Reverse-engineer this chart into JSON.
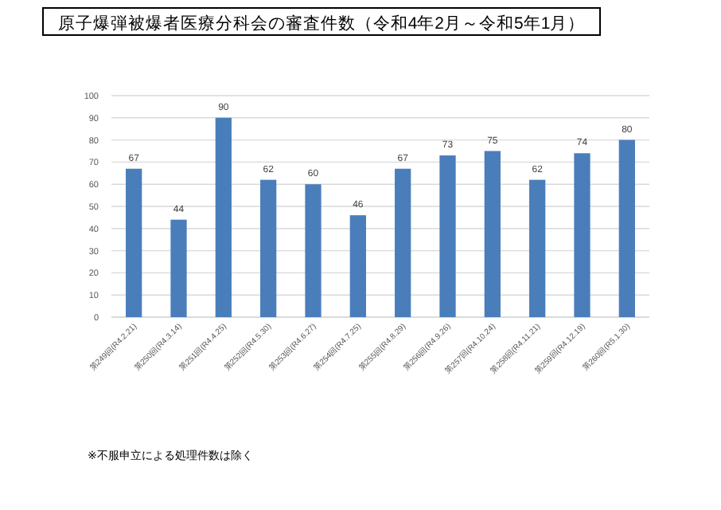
{
  "chart_data": {
    "type": "bar",
    "title": "原子爆弾被爆者医療分科会の審査件数（令和4年2月～令和5年1月）",
    "categories": [
      "第249回(R4.2.21)",
      "第250回(R4.3.14)",
      "第251回(R4.4.25)",
      "第252回(R4.5.30)",
      "第253回(R4.6.27)",
      "第254回(R4.7.25)",
      "第255回(R4.8.29)",
      "第256回(R4.9.26)",
      "第257回(R4.10.24)",
      "第258回(R4.11.21)",
      "第259回(R4.12.19)",
      "第260回(R5.1.30)"
    ],
    "values": [
      67,
      44,
      90,
      62,
      60,
      46,
      67,
      73,
      75,
      62,
      74,
      80
    ],
    "color": "#4a7ebb",
    "ylim": [
      0,
      100
    ],
    "yticks": [
      0,
      10,
      20,
      30,
      40,
      50,
      60,
      70,
      80,
      90,
      100
    ],
    "grid": "y",
    "data_labels": true,
    "annotations": [
      "※不服申立による処理件数は除く"
    ]
  }
}
